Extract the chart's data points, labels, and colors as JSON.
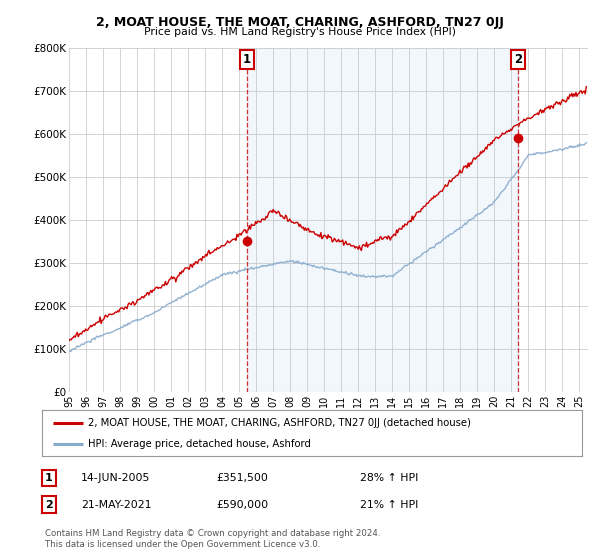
{
  "title": "2, MOAT HOUSE, THE MOAT, CHARING, ASHFORD, TN27 0JJ",
  "subtitle": "Price paid vs. HM Land Registry's House Price Index (HPI)",
  "ylabel_ticks": [
    "£0",
    "£100K",
    "£200K",
    "£300K",
    "£400K",
    "£500K",
    "£600K",
    "£700K",
    "£800K"
  ],
  "ytick_vals": [
    0,
    100000,
    200000,
    300000,
    400000,
    500000,
    600000,
    700000,
    800000
  ],
  "ylim": [
    0,
    800000
  ],
  "xlim_start": 1995.0,
  "xlim_end": 2025.5,
  "sale1_x": 2005.45,
  "sale1_y": 351500,
  "sale2_x": 2021.38,
  "sale2_y": 590000,
  "sale1_label": "1",
  "sale2_label": "2",
  "sale1_date": "14-JUN-2005",
  "sale1_price": "£351,500",
  "sale1_hpi": "28% ↑ HPI",
  "sale2_date": "21-MAY-2021",
  "sale2_price": "£590,000",
  "sale2_hpi": "21% ↑ HPI",
  "legend1": "2, MOAT HOUSE, THE MOAT, CHARING, ASHFORD, TN27 0JJ (detached house)",
  "legend2": "HPI: Average price, detached house, Ashford",
  "footnote": "Contains HM Land Registry data © Crown copyright and database right 2024.\nThis data is licensed under the Open Government Licence v3.0.",
  "red_color": "#cc0000",
  "blue_color": "#88aacc",
  "fill_color": "#ddeeff",
  "dashed_red": "#cc3333",
  "bg_color": "#ffffff",
  "grid_color": "#cccccc"
}
